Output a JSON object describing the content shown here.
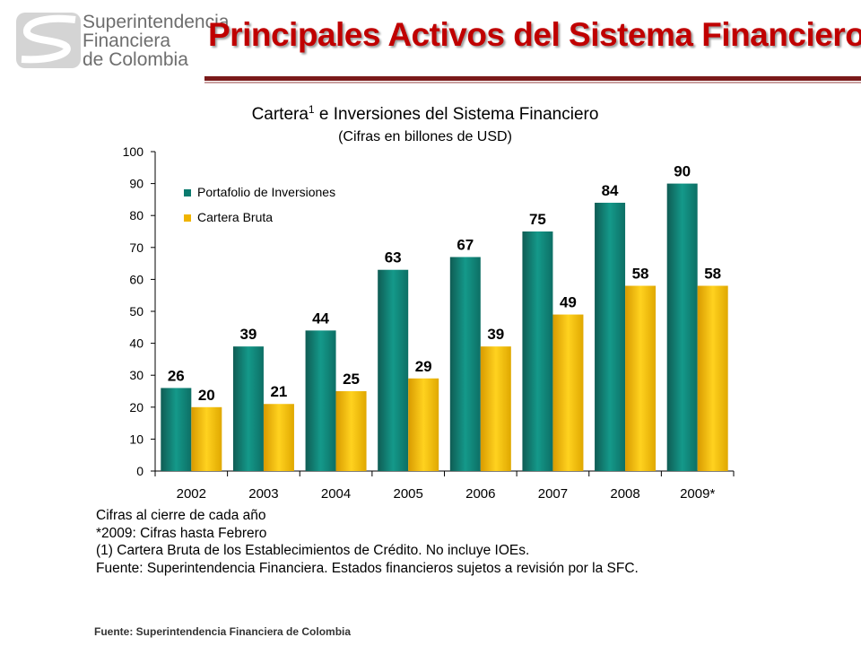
{
  "header": {
    "logo_lines": [
      "Superintendencia",
      "Financiera",
      "de Colombia"
    ],
    "title": "Principales Activos del Sistema Financiero"
  },
  "colors": {
    "title": "#c00000",
    "rule": "#7a1a1a",
    "teal": "#0a7a6e",
    "gold": "#f0b400"
  },
  "chart_data": {
    "type": "bar",
    "title_main": "Cartera",
    "title_sup": "1",
    "title_rest": " e Inversiones del Sistema Financiero",
    "subtitle": "(Cifras en billones de USD)",
    "categories": [
      "2002",
      "2003",
      "2004",
      "2005",
      "2006",
      "2007",
      "2008",
      "2009*"
    ],
    "series": [
      {
        "name": "Portafolio de Inversiones",
        "color": "#0a7a6e",
        "values": [
          26,
          39,
          44,
          63,
          67,
          75,
          84,
          90
        ]
      },
      {
        "name": "Cartera Bruta",
        "color": "#f0b400",
        "values": [
          20,
          21,
          25,
          29,
          39,
          49,
          58,
          58
        ]
      }
    ],
    "ylim": [
      0,
      100
    ],
    "yticks": [
      0,
      10,
      20,
      30,
      40,
      50,
      60,
      70,
      80,
      90,
      100
    ],
    "grid": false,
    "legend": "top-left"
  },
  "notes": [
    "Cifras al cierre de cada año",
    "*2009: Cifras hasta Febrero",
    "(1) Cartera Bruta de los Establecimientos de Crédito. No incluye IOEs.",
    "Fuente: Superintendencia Financiera. Estados financieros sujetos a revisión por la SFC."
  ],
  "source": "Fuente: Superintendencia Financiera de Colombia"
}
